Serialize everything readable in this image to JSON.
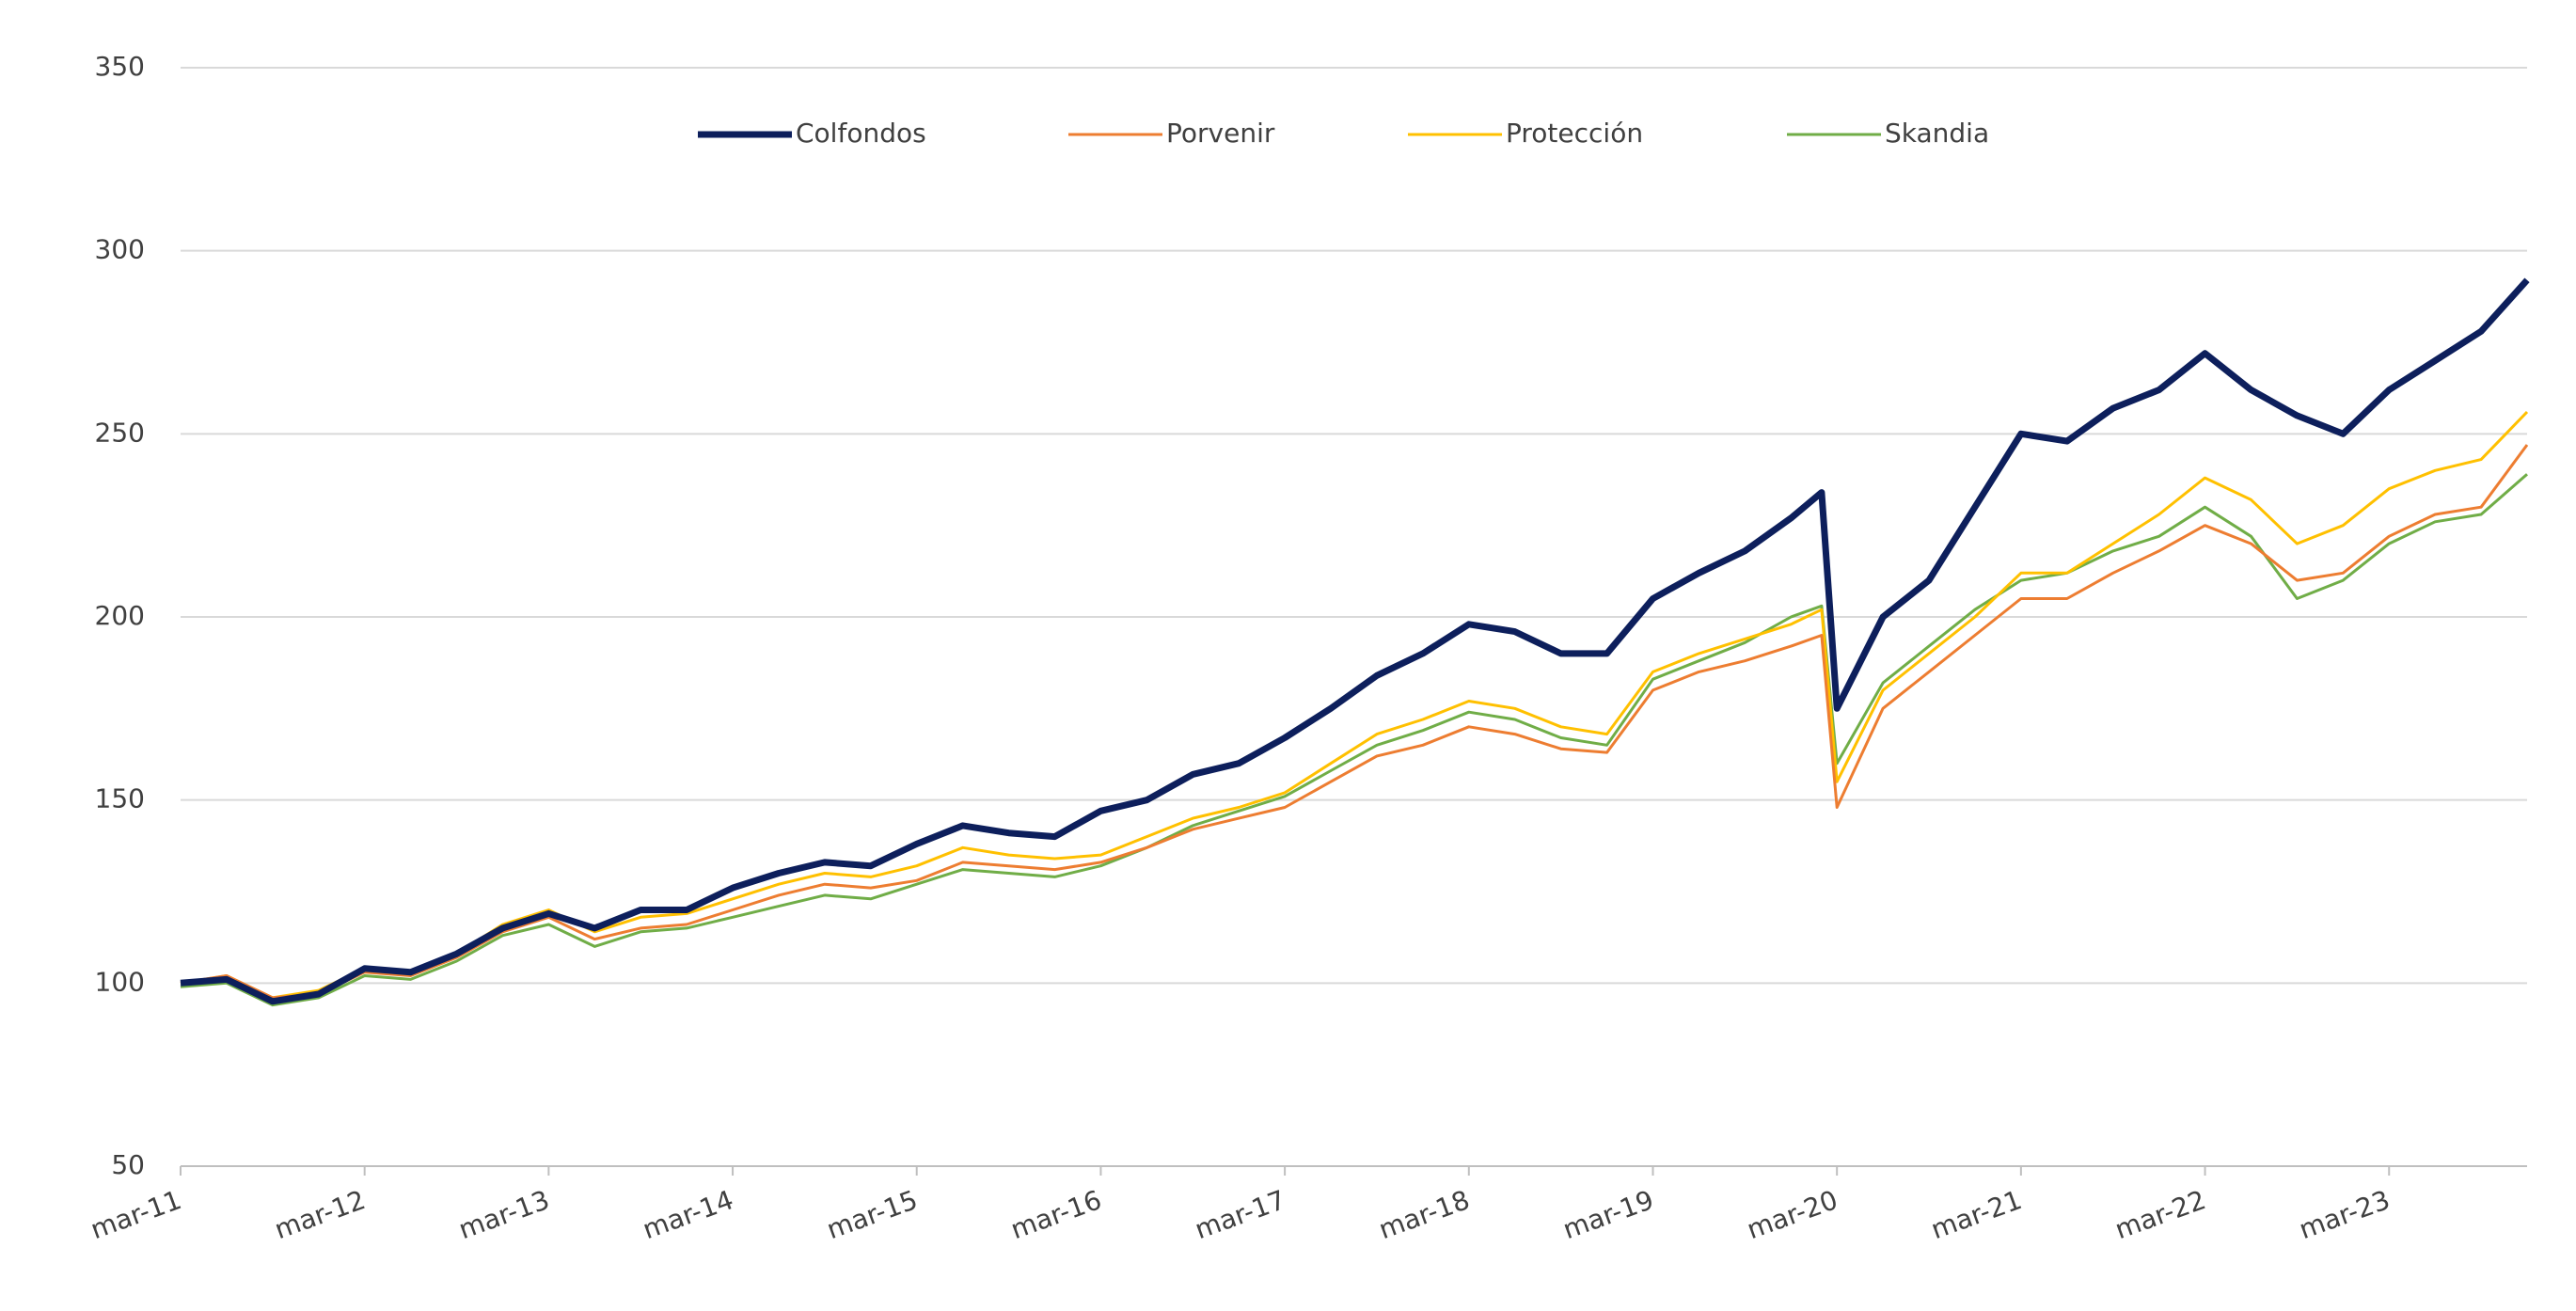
{
  "chart_data": {
    "type": "line",
    "x": [
      "2011-03",
      "2011-06",
      "2011-09",
      "2011-12",
      "2012-03",
      "2012-06",
      "2012-09",
      "2012-12",
      "2013-03",
      "2013-06",
      "2013-09",
      "2013-12",
      "2014-03",
      "2014-06",
      "2014-09",
      "2014-12",
      "2015-03",
      "2015-06",
      "2015-09",
      "2015-12",
      "2016-03",
      "2016-06",
      "2016-09",
      "2016-12",
      "2017-03",
      "2017-06",
      "2017-09",
      "2017-12",
      "2018-03",
      "2018-06",
      "2018-09",
      "2018-12",
      "2019-03",
      "2019-06",
      "2019-09",
      "2019-12",
      "2020-02",
      "2020-03",
      "2020-06",
      "2020-09",
      "2020-12",
      "2021-03",
      "2021-06",
      "2021-09",
      "2021-12",
      "2022-03",
      "2022-06",
      "2022-09",
      "2022-12",
      "2023-03",
      "2023-06",
      "2023-09",
      "2023-12"
    ],
    "series": [
      {
        "name": "Colfondos",
        "color": "#0d1f5c",
        "values": [
          100,
          101,
          95,
          97,
          104,
          103,
          108,
          115,
          119,
          115,
          120,
          120,
          126,
          130,
          133,
          132,
          138,
          143,
          141,
          140,
          147,
          150,
          157,
          160,
          167,
          175,
          184,
          190,
          198,
          196,
          190,
          190,
          205,
          212,
          218,
          227,
          234,
          175,
          200,
          210,
          230,
          250,
          248,
          257,
          262,
          272,
          262,
          255,
          250,
          262,
          270,
          278,
          292
        ]
      },
      {
        "name": "Porvenir",
        "color": "#ed7d31",
        "values": [
          100,
          102,
          96,
          97,
          103,
          102,
          107,
          114,
          118,
          112,
          115,
          116,
          120,
          124,
          127,
          126,
          128,
          133,
          132,
          131,
          133,
          137,
          142,
          145,
          148,
          155,
          162,
          165,
          170,
          168,
          164,
          163,
          180,
          185,
          188,
          192,
          195,
          148,
          175,
          185,
          195,
          205,
          205,
          212,
          218,
          225,
          220,
          210,
          212,
          222,
          228,
          230,
          247
        ]
      },
      {
        "name": "Protección",
        "color": "#ffc000",
        "values": [
          100,
          102,
          96,
          98,
          104,
          103,
          108,
          116,
          120,
          114,
          118,
          119,
          123,
          127,
          130,
          129,
          132,
          137,
          135,
          134,
          135,
          140,
          145,
          148,
          152,
          160,
          168,
          172,
          177,
          175,
          170,
          168,
          185,
          190,
          194,
          198,
          202,
          155,
          180,
          190,
          200,
          212,
          212,
          220,
          228,
          238,
          232,
          220,
          225,
          235,
          240,
          243,
          256
        ]
      },
      {
        "name": "Skandia",
        "color": "#70ad47",
        "values": [
          99,
          100,
          94,
          96,
          102,
          101,
          106,
          113,
          116,
          110,
          114,
          115,
          118,
          121,
          124,
          123,
          127,
          131,
          130,
          129,
          132,
          137,
          143,
          147,
          151,
          158,
          165,
          169,
          174,
          172,
          167,
          165,
          183,
          188,
          193,
          200,
          203,
          160,
          182,
          192,
          202,
          210,
          212,
          218,
          222,
          230,
          222,
          205,
          210,
          220,
          226,
          228,
          239
        ]
      }
    ],
    "xlim": [
      "2011-03",
      "2023-12"
    ],
    "xticks": [
      {
        "value": "2011-03",
        "label": "mar-11"
      },
      {
        "value": "2012-03",
        "label": "mar-12"
      },
      {
        "value": "2013-03",
        "label": "mar-13"
      },
      {
        "value": "2014-03",
        "label": "mar-14"
      },
      {
        "value": "2015-03",
        "label": "mar-15"
      },
      {
        "value": "2016-03",
        "label": "mar-16"
      },
      {
        "value": "2017-03",
        "label": "mar-17"
      },
      {
        "value": "2018-03",
        "label": "mar-18"
      },
      {
        "value": "2019-03",
        "label": "mar-19"
      },
      {
        "value": "2020-03",
        "label": "mar-20"
      },
      {
        "value": "2021-03",
        "label": "mar-21"
      },
      {
        "value": "2022-03",
        "label": "mar-22"
      },
      {
        "value": "2023-03",
        "label": "mar-23"
      }
    ],
    "ylim": [
      50,
      350
    ],
    "yticks": [
      50,
      100,
      150,
      200,
      250,
      300,
      350
    ],
    "grid": true,
    "legend": "top"
  }
}
